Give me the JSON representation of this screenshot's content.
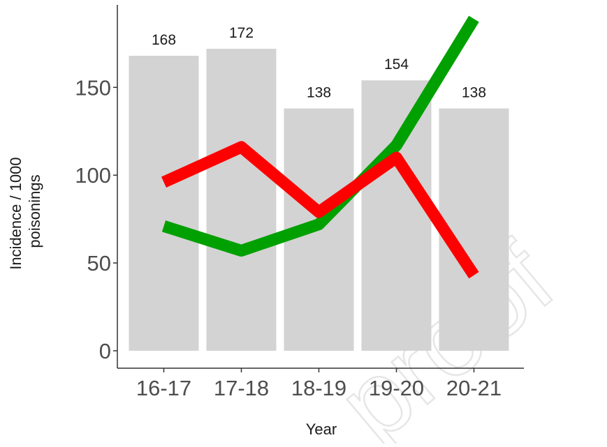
{
  "chart_data": {
    "type": "bar",
    "categories": [
      "16-17",
      "17-18",
      "18-19",
      "19-20",
      "20-21"
    ],
    "values": [
      168,
      172,
      138,
      154,
      138
    ],
    "data_labels": [
      "168",
      "172",
      "138",
      "154",
      "138"
    ],
    "lines": [
      {
        "color": "#00a000",
        "values": [
          71,
          57,
          72,
          117,
          189
        ]
      },
      {
        "color": "#ff0000",
        "values": [
          96,
          116,
          79,
          110,
          43
        ]
      }
    ],
    "bar_color": "#d3d3d3",
    "title": "",
    "xlabel": "Year",
    "ylabel_lines": [
      "Incidence / 1000",
      "poisonings"
    ],
    "yticks": [
      "0",
      "50",
      "100",
      "150"
    ],
    "ylim": [
      0,
      195
    ],
    "grid": false,
    "legend": "none"
  },
  "watermark": "proof"
}
